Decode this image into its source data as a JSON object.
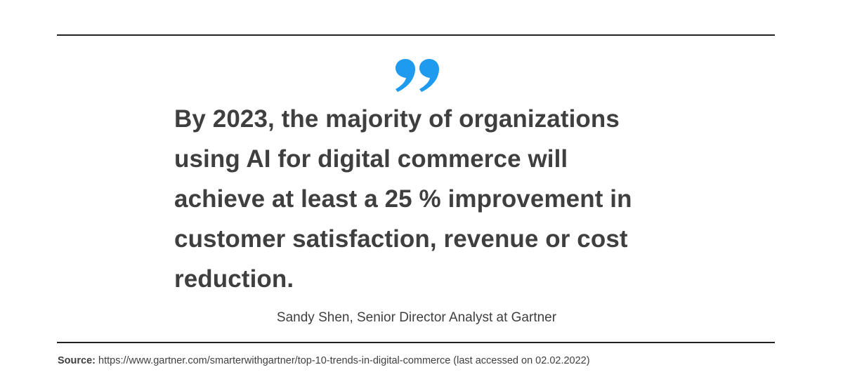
{
  "quote": {
    "mark_icon": "closing-quote-icon",
    "mark_color": "#1e9bef",
    "text": "By 2023, the majority of organizations using AI for digital commerce will achieve at least a 25 % improvement in customer satisfaction, revenue or cost reduction.",
    "attribution": "Sandy Shen, Senior Director Analyst at Gartner"
  },
  "source": {
    "label": "Source:",
    "text": "https://www.gartner.com/smarterwithgartner/top-10-trends-in-digital-commerce (last accessed on 02.02.2022)"
  },
  "colors": {
    "text": "#3f3f3f",
    "rule": "#222222",
    "accent": "#1e9bef"
  }
}
